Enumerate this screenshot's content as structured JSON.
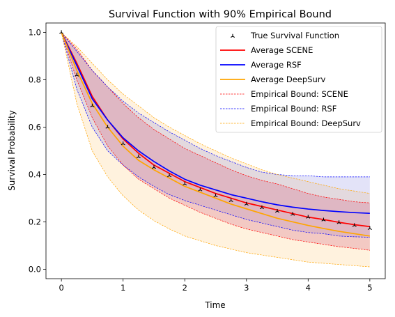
{
  "chart_data": {
    "type": "line",
    "title": "Survival Function with 90% Empirical Bound",
    "xlabel": "Time",
    "ylabel": "Survival Probability",
    "xlim": [
      -0.25,
      5.25
    ],
    "ylim": [
      -0.04,
      1.04
    ],
    "xticks": [
      0,
      1,
      2,
      3,
      4,
      5
    ],
    "yticks": [
      0.0,
      0.2,
      0.4,
      0.6,
      0.8,
      1.0
    ],
    "grid": false,
    "legend_position": "top-right",
    "x": [
      0,
      0.25,
      0.5,
      0.75,
      1.0,
      1.25,
      1.5,
      1.75,
      2.0,
      2.25,
      2.5,
      2.75,
      3.0,
      3.25,
      3.5,
      3.75,
      4.0,
      4.25,
      4.5,
      4.75,
      5.0
    ],
    "true_survival": {
      "name": "True Survival Function",
      "color": "#000000",
      "values": [
        1.0,
        0.82,
        0.69,
        0.6,
        0.53,
        0.475,
        0.43,
        0.395,
        0.36,
        0.335,
        0.31,
        0.29,
        0.275,
        0.26,
        0.245,
        0.232,
        0.22,
        0.208,
        0.197,
        0.185,
        0.172
      ]
    },
    "series": [
      {
        "name": "Average SCENE",
        "color": "#ff0000",
        "values": [
          1.0,
          0.87,
          0.73,
          0.63,
          0.55,
          0.49,
          0.44,
          0.405,
          0.37,
          0.345,
          0.32,
          0.3,
          0.28,
          0.265,
          0.25,
          0.235,
          0.22,
          0.21,
          0.198,
          0.188,
          0.18
        ]
      },
      {
        "name": "Average RSF",
        "color": "#0000ff",
        "values": [
          1.0,
          0.86,
          0.72,
          0.63,
          0.555,
          0.5,
          0.455,
          0.415,
          0.38,
          0.355,
          0.335,
          0.315,
          0.3,
          0.285,
          0.272,
          0.262,
          0.254,
          0.248,
          0.243,
          0.239,
          0.236
        ]
      },
      {
        "name": "Average DeepSurv",
        "color": "#ffa500",
        "values": [
          1.0,
          0.84,
          0.7,
          0.6,
          0.52,
          0.46,
          0.42,
          0.385,
          0.35,
          0.325,
          0.3,
          0.275,
          0.255,
          0.235,
          0.215,
          0.2,
          0.185,
          0.172,
          0.16,
          0.15,
          0.14
        ]
      }
    ],
    "bounds": [
      {
        "name": "Empirical Bound: SCENE",
        "color": "#ff0000",
        "upper": [
          1.0,
          0.93,
          0.84,
          0.77,
          0.7,
          0.64,
          0.59,
          0.55,
          0.51,
          0.48,
          0.45,
          0.42,
          0.395,
          0.375,
          0.36,
          0.34,
          0.32,
          0.305,
          0.295,
          0.285,
          0.28
        ],
        "lower": [
          1.0,
          0.8,
          0.64,
          0.52,
          0.44,
          0.38,
          0.34,
          0.3,
          0.27,
          0.24,
          0.215,
          0.19,
          0.17,
          0.155,
          0.14,
          0.125,
          0.115,
          0.105,
          0.095,
          0.088,
          0.08
        ]
      },
      {
        "name": "Empirical Bound: RSF",
        "color": "#0000ff",
        "upper": [
          1.0,
          0.92,
          0.84,
          0.77,
          0.71,
          0.66,
          0.62,
          0.58,
          0.545,
          0.51,
          0.48,
          0.455,
          0.43,
          0.41,
          0.4,
          0.395,
          0.395,
          0.39,
          0.39,
          0.39,
          0.39
        ],
        "lower": [
          1.0,
          0.76,
          0.6,
          0.5,
          0.44,
          0.39,
          0.35,
          0.315,
          0.29,
          0.27,
          0.25,
          0.23,
          0.21,
          0.195,
          0.18,
          0.165,
          0.155,
          0.15,
          0.14,
          0.137,
          0.135
        ]
      },
      {
        "name": "Empirical Bound: DeepSurv",
        "color": "#ffa500",
        "upper": [
          1.0,
          0.94,
          0.87,
          0.8,
          0.74,
          0.69,
          0.64,
          0.6,
          0.565,
          0.53,
          0.5,
          0.47,
          0.445,
          0.42,
          0.4,
          0.385,
          0.37,
          0.355,
          0.34,
          0.33,
          0.32
        ],
        "lower": [
          1.0,
          0.7,
          0.5,
          0.39,
          0.31,
          0.25,
          0.205,
          0.17,
          0.14,
          0.12,
          0.1,
          0.085,
          0.07,
          0.06,
          0.05,
          0.04,
          0.03,
          0.025,
          0.02,
          0.015,
          0.01
        ]
      }
    ]
  }
}
